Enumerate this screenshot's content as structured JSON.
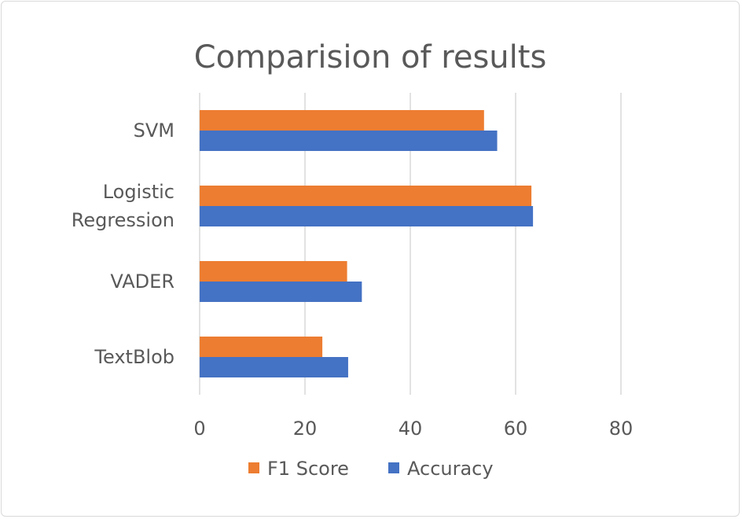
{
  "chart_data": {
    "type": "bar",
    "orientation": "horizontal",
    "title": "Comparision of results",
    "xlabel": "",
    "ylabel": "",
    "categories": [
      "SVM",
      "Logistic Regression",
      "VADER",
      "TextBlob"
    ],
    "category_lines": [
      [
        "SVM"
      ],
      [
        "Logistic",
        "Regression"
      ],
      [
        "VADER"
      ],
      [
        "TextBlob"
      ]
    ],
    "series": [
      {
        "name": "F1 Score",
        "color": "#ed7d31",
        "values": [
          54,
          63,
          28,
          23.3
        ]
      },
      {
        "name": "Accuracy",
        "color": "#4472c4",
        "values": [
          56.5,
          63.3,
          30.8,
          28.2
        ]
      }
    ],
    "xlim": [
      0,
      80
    ],
    "xticks": [
      0,
      20,
      40,
      60,
      80
    ],
    "grid": "vertical",
    "legend": "bottom",
    "gridline_color": "#d9d9d9",
    "text_color": "#595959"
  }
}
